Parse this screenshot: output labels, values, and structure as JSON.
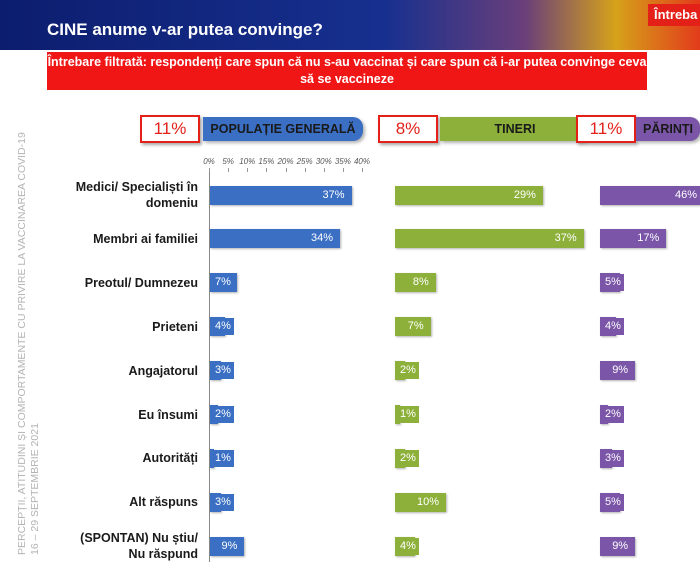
{
  "header": {
    "title": "CINE anume v-ar putea convinge?",
    "corner": "Întreba",
    "subtitle": "Întrebare filtrată: respondenți care spun că nu s-au vaccinat și care spun că i-ar putea convinge ceva să se vaccineze",
    "side_text": "PERCEPȚII, ATITUDINI ȘI COMPORTAMENTE CU PRIVIRE LA VACCINAREA COVID-19",
    "side_date": "16 – 29 SEPTEMBRIE 2021"
  },
  "chart_data": [
    {
      "type": "bar",
      "orientation": "horizontal",
      "title": "POPULAȚIE GENERALĂ",
      "share": "11%",
      "color": "#3a6fc4",
      "categories": [
        "Medici/ Specialiști în\ndomeniu",
        "Membri ai familiei",
        "Preotul/ Dumnezeu",
        "Prieteni",
        "Angajatorul",
        "Eu însumi",
        "Autorități",
        "Alt răspuns",
        "(SPONTAN) Nu știu/\nNu răspund"
      ],
      "values": [
        37,
        34,
        7,
        4,
        3,
        2,
        1,
        3,
        9
      ],
      "value_labels": [
        "37%",
        "34%",
        "7%",
        "4%",
        "3%",
        "2%",
        "1%",
        "3%",
        "9%"
      ],
      "xlim": [
        0,
        40
      ],
      "xticks": [
        {
          "value": 0,
          "label": "0%"
        },
        {
          "value": 5,
          "label": "5%"
        },
        {
          "value": 10,
          "label": "10%"
        },
        {
          "value": 15,
          "label": "15%"
        },
        {
          "value": 20,
          "label": "20%"
        },
        {
          "value": 25,
          "label": "25%"
        },
        {
          "value": 30,
          "label": "30%"
        },
        {
          "value": 35,
          "label": "35%"
        },
        {
          "value": 40,
          "label": "40%"
        }
      ]
    },
    {
      "type": "bar",
      "orientation": "horizontal",
      "title": "TINERI",
      "share": "8%",
      "color": "#8db03a",
      "values": [
        29,
        37,
        8,
        7,
        2,
        1,
        2,
        10,
        4
      ],
      "value_labels": [
        "29%",
        "37%",
        "8%",
        "7%",
        "2%",
        "1%",
        "2%",
        "10%",
        "4%"
      ]
    },
    {
      "type": "bar",
      "orientation": "horizontal",
      "title": "PĂRINȚI",
      "share": "11%",
      "color": "#7a55a8",
      "values": [
        46,
        17,
        5,
        4,
        9,
        2,
        3,
        5,
        9
      ],
      "value_labels": [
        "46%",
        "17%",
        "5%",
        "4%",
        "9%",
        "2%",
        "3%",
        "5%",
        "9%"
      ]
    }
  ]
}
